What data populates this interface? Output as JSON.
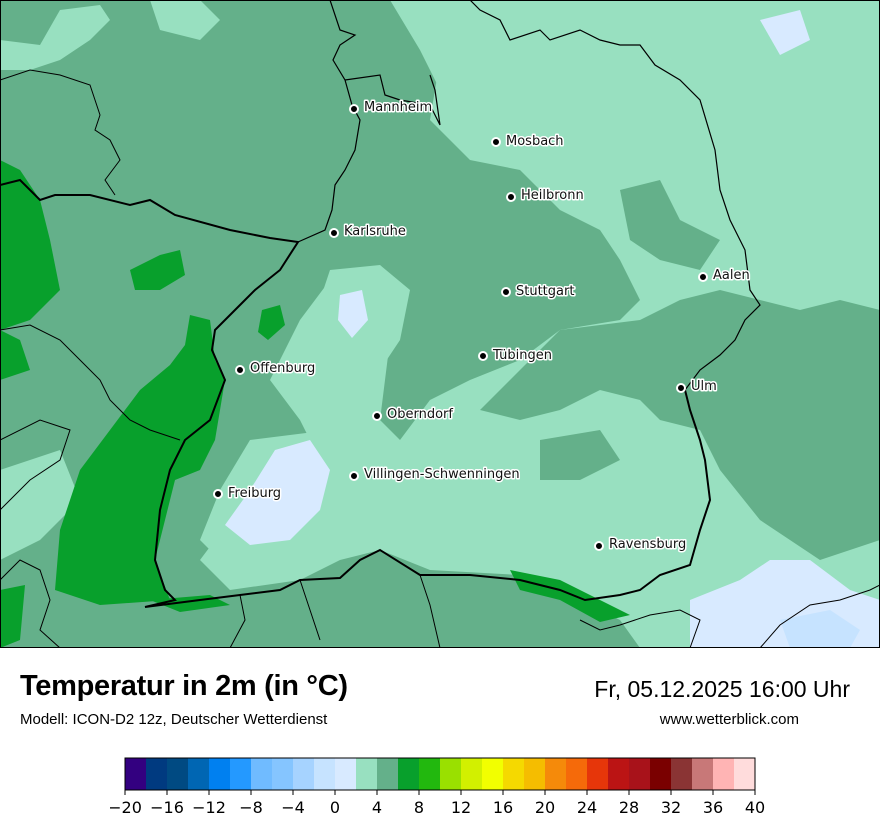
{
  "title": "Temperatur in 2m (in °C)",
  "subtitle": "Modell: ICON-D2 12z, Deutscher Wetterdienst",
  "datetime": "Fr, 05.12.2025 16:00 Uhr",
  "website": "www.wetterblick.com",
  "cities": [
    "Mannheim",
    "Mosbach",
    "Heilbronn",
    "Karlsruhe",
    "Aalen",
    "Stuttgart",
    "Tübingen",
    "Offenburg",
    "Ulm",
    "Oberndorf",
    "Villingen-Schwenningen",
    "Freiburg",
    "Ravensburg"
  ],
  "legend": {
    "min": -20,
    "max": 40,
    "step": 2,
    "tick_labels": [
      "−20",
      "−16",
      "−12",
      "−8",
      "−4",
      "0",
      "4",
      "8",
      "12",
      "16",
      "20",
      "24",
      "28",
      "32",
      "36",
      "40"
    ],
    "colors": [
      "#330080",
      "#003a80",
      "#004a82",
      "#0066b3",
      "#0080f0",
      "#2499ff",
      "#70bbff",
      "#85c5ff",
      "#a6d3ff",
      "#c6e3ff",
      "#d8eaff",
      "#98e0c0",
      "#64b08a",
      "#08a02c",
      "#22b80e",
      "#9ae000",
      "#d2f000",
      "#f2ff00",
      "#f5d900",
      "#f5bd00",
      "#f58a0a",
      "#f56a0a",
      "#e6360a",
      "#bb1414",
      "#a8121a",
      "#7a0000",
      "#8a3434",
      "#c87878",
      "#ffb4b4",
      "#ffdcdc"
    ]
  },
  "map_colors": {
    "light_green": "#98e0c0",
    "mid_green": "#64b08a",
    "dark_green": "#08a02c",
    "light_blue": "#d8eaff",
    "pale_blue": "#c6e3ff",
    "border": "#000000"
  }
}
